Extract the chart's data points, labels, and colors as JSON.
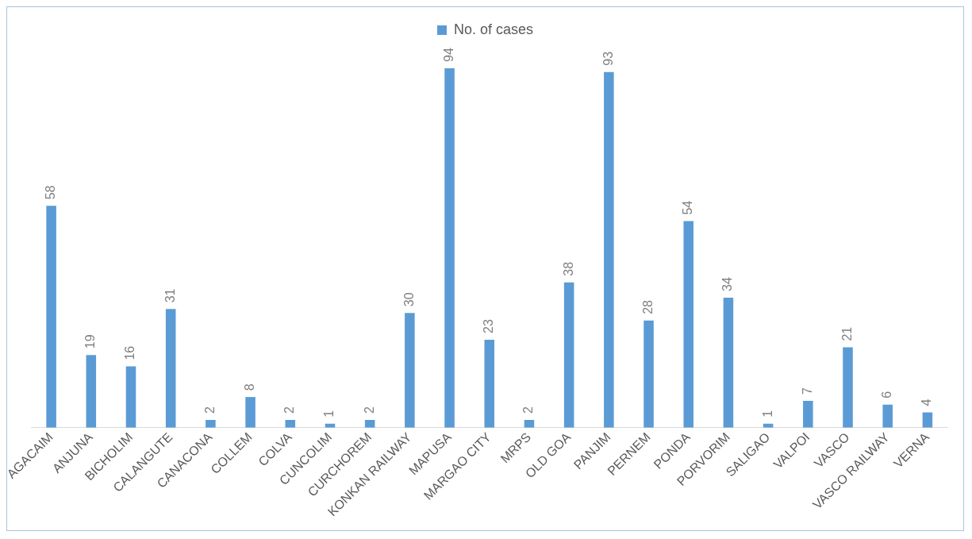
{
  "chart_data": {
    "type": "bar",
    "categories": [
      "AGACAIM",
      "ANJUNA",
      "BICHOLIM",
      "CALANGUTE",
      "CANACONA",
      "COLLEM",
      "COLVA",
      "CUNCOLIM",
      "CURCHOREM",
      "KONKAN RAILWAY",
      "MAPUSA",
      "MARGAO CITY",
      "MRPS",
      "OLD GOA",
      "PANJIM",
      "PERNEM",
      "PONDA",
      "PORVORIM",
      "SALIGAO",
      "VALPOI",
      "VASCO",
      "VASCO RAILWAY",
      "VERNA"
    ],
    "series": [
      {
        "name": "No. of cases",
        "color": "#5b9bd5",
        "values": [
          58,
          19,
          16,
          31,
          2,
          8,
          2,
          1,
          2,
          30,
          94,
          23,
          2,
          38,
          93,
          28,
          54,
          34,
          1,
          7,
          21,
          6,
          4
        ]
      }
    ],
    "data_labels": true,
    "legend": "top",
    "grid": false
  }
}
